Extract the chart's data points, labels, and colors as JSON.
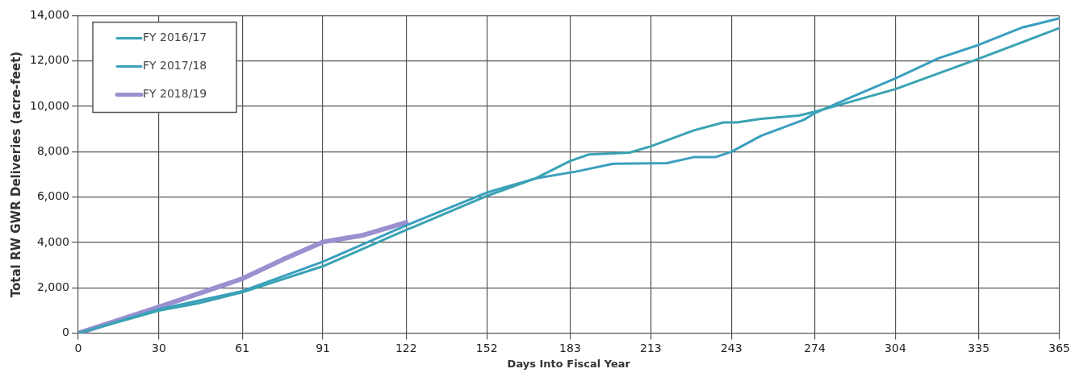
{
  "chart_data": {
    "type": "line",
    "xlabel": "Days Into Fiscal Year",
    "ylabel": "Total RW GWR Deliveries (acre-feet)",
    "xlim": [
      0,
      365
    ],
    "xticks": [
      0,
      30,
      61,
      91,
      122,
      152,
      183,
      213,
      243,
      274,
      304,
      335,
      365
    ],
    "ylim": [
      0,
      14000
    ],
    "yticks": [
      0,
      {
        "value": 2000,
        "label": "2,000"
      },
      {
        "value": 4000,
        "label": "4,000"
      },
      {
        "value": 6000,
        "label": "6,000"
      },
      {
        "value": 8000,
        "label": "8,000"
      },
      {
        "value": 10000,
        "label": "10,000"
      },
      {
        "value": 12000,
        "label": "12,000"
      },
      {
        "value": 14000,
        "label": "14,000"
      }
    ],
    "grid": true,
    "legend": "top left",
    "marker": "none",
    "line_style": "solid",
    "series": [
      {
        "name": "FY 2016/17",
        "color": "#3aa3b3",
        "x": [
          0,
          30,
          45,
          61,
          91,
          122,
          152,
          170,
          183,
          190,
          205,
          213,
          229,
          240,
          245,
          254,
          268,
          274,
          304,
          335,
          365
        ],
        "values": [
          0,
          1000,
          1330,
          1800,
          2950,
          4550,
          6050,
          6820,
          7590,
          7880,
          7960,
          8240,
          8940,
          9290,
          9290,
          9450,
          9590,
          9760,
          10760,
          12100,
          13450
        ]
      },
      {
        "name": "FY 2017/18",
        "color": "#3b9fbf",
        "x": [
          0,
          30,
          61,
          91,
          122,
          152,
          170,
          185,
          199,
          219,
          229,
          237,
          243,
          254,
          270,
          274,
          290,
          304,
          320,
          335,
          351,
          365
        ],
        "values": [
          0,
          1050,
          1850,
          3150,
          4750,
          6200,
          6820,
          7120,
          7470,
          7500,
          7760,
          7760,
          8000,
          8700,
          9410,
          9700,
          10530,
          11230,
          12120,
          12710,
          13470,
          13880
        ]
      },
      {
        "name": "FY 2018/19",
        "color": "#9b8fd0",
        "x": [
          0,
          30,
          61,
          76,
          91,
          106,
          122
        ],
        "values": [
          0,
          1150,
          2400,
          3240,
          4020,
          4320,
          4880
        ]
      }
    ]
  }
}
